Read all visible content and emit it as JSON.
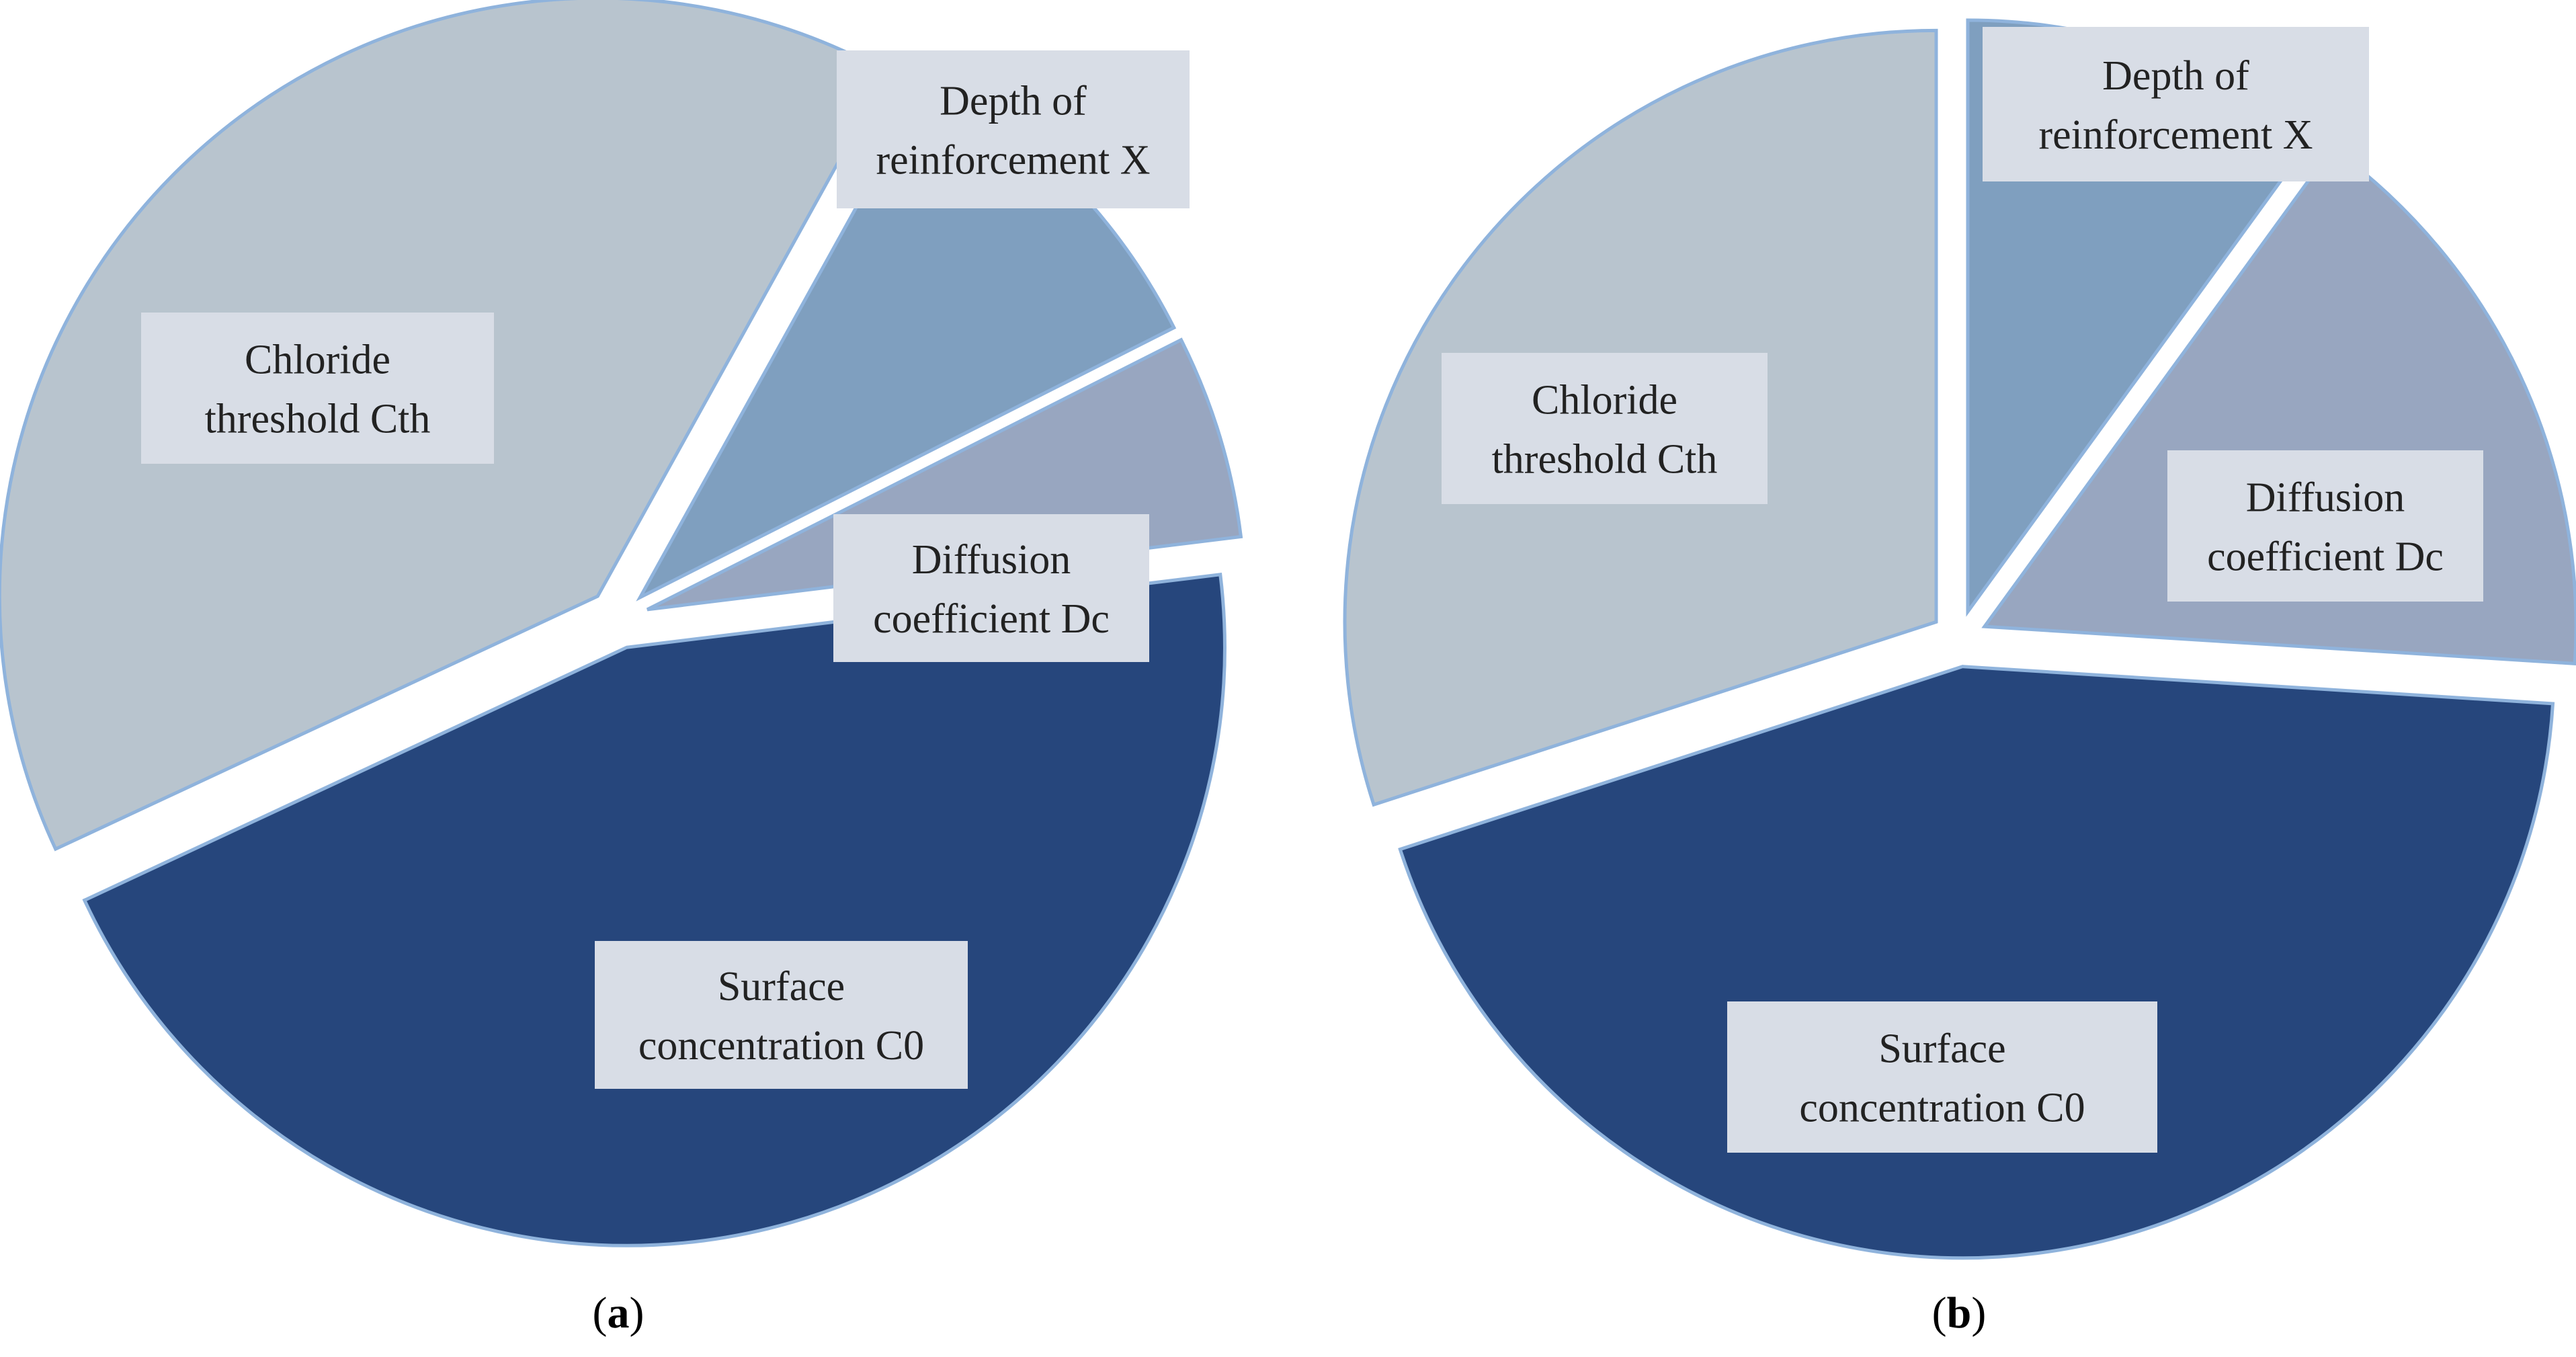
{
  "chart_data": [
    {
      "type": "pie",
      "panel": "a",
      "caption_open": "(",
      "caption_letter": "a",
      "caption_close": ")",
      "units": "percent (approximate, read from slice angles)",
      "slices": [
        {
          "key": "x",
          "label_lines": [
            "Depth of",
            "reinforcement X"
          ],
          "value": 9.5,
          "color": "#7f9fbf"
        },
        {
          "key": "dc",
          "label_lines": [
            "Diffusion",
            "coefficient Dc"
          ],
          "value": 5.5,
          "color": "#98a6c0"
        },
        {
          "key": "c0",
          "label_lines": [
            "Surface",
            "concentration C0"
          ],
          "value": 45.0,
          "color": "#26467c"
        },
        {
          "key": "cth",
          "label_lines": [
            "Chloride",
            "threshold  Cth"
          ],
          "value": 40.0,
          "color": "#b8c4ce"
        }
      ]
    },
    {
      "type": "pie",
      "panel": "b",
      "caption_open": "(",
      "caption_letter": "b",
      "caption_close": ")",
      "units": "percent (approximate, read from slice angles)",
      "slices": [
        {
          "key": "x",
          "label_lines": [
            "Depth of",
            "reinforcement X"
          ],
          "value": 10.0,
          "color": "#7f9fbf"
        },
        {
          "key": "dc",
          "label_lines": [
            "Diffusion",
            "coefficient Dc"
          ],
          "value": 16.0,
          "color": "#98a6c0"
        },
        {
          "key": "c0",
          "label_lines": [
            "Surface",
            "concentration C0"
          ],
          "value": 44.0,
          "color": "#26467c"
        },
        {
          "key": "cth",
          "label_lines": [
            "Chloride",
            "threshold  Cth"
          ],
          "value": 30.0,
          "color": "#b8c4ce"
        }
      ]
    }
  ]
}
